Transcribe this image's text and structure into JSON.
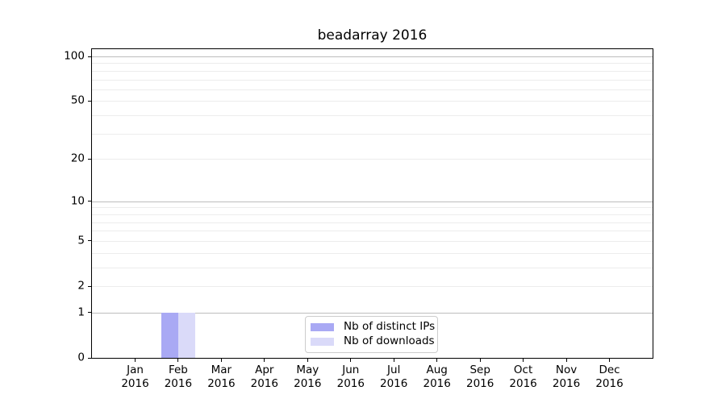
{
  "chart_data": {
    "type": "bar",
    "title": "beadarray 2016",
    "x": {
      "months": [
        "Jan",
        "Feb",
        "Mar",
        "Apr",
        "May",
        "Jun",
        "Jul",
        "Aug",
        "Sep",
        "Oct",
        "Nov",
        "Dec"
      ],
      "year": "2016"
    },
    "series": [
      {
        "name": "Nb of distinct IPs",
        "color": "#a9a9f4",
        "values": [
          0,
          1,
          0,
          0,
          0,
          0,
          0,
          0,
          0,
          0,
          0,
          0
        ]
      },
      {
        "name": "Nb of downloads",
        "color": "#dadaf9",
        "values": [
          0,
          1,
          0,
          0,
          0,
          0,
          0,
          0,
          0,
          0,
          0,
          0
        ]
      }
    ],
    "y_axis": {
      "scale": "log1p",
      "tick_values": [
        0,
        1,
        2,
        5,
        10,
        20,
        50,
        100
      ],
      "major_grid_values": [
        1,
        10,
        100
      ],
      "minor_grid_values": [
        2,
        3,
        4,
        5,
        6,
        7,
        8,
        9,
        20,
        30,
        40,
        50,
        60,
        70,
        80,
        90
      ],
      "ylim": [
        0,
        113
      ]
    },
    "legend": {
      "position": "lower center"
    },
    "grid": "horizontal",
    "colors": {
      "major_grid": "#bdbdbd",
      "minor_grid": "#ececec",
      "spine": "#000000",
      "text": "#000000",
      "legend_border": "#cccccc"
    }
  }
}
